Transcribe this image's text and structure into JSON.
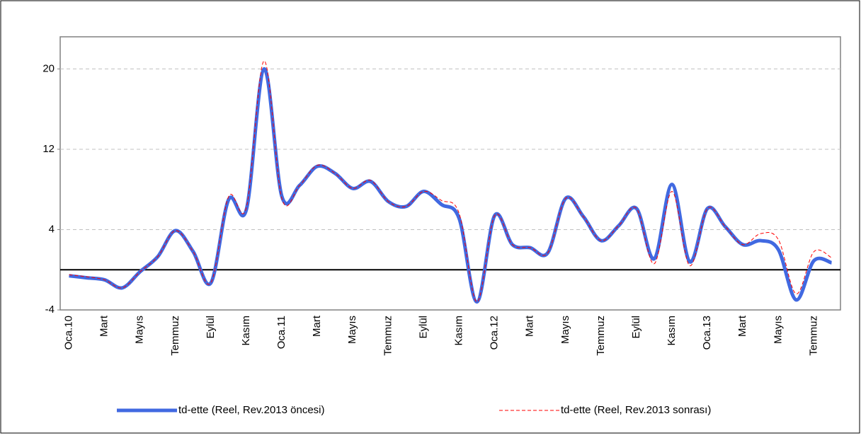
{
  "chart_data": {
    "type": "line",
    "categories": [
      "Oca.10",
      null,
      "Mart",
      null,
      "Mayıs",
      null,
      "Temmuz",
      null,
      "Eylül",
      null,
      "Kasım",
      null,
      "Oca.11",
      null,
      "Mart",
      null,
      "Mayıs",
      null,
      "Temmuz",
      null,
      "Eylül",
      null,
      "Kasım",
      null,
      "Oca.12",
      null,
      "Mart",
      null,
      "Mayıs",
      null,
      "Temmuz",
      null,
      "Eylül",
      null,
      "Kasım",
      null,
      "Oca.13",
      null,
      "Mart",
      null,
      "Mayıs",
      null,
      "Temmuz",
      null
    ],
    "series": [
      {
        "name": "td-ette (Reel, Rev.2013 öncesi)",
        "color": "#4169e1",
        "style": "solid",
        "values": [
          -0.6,
          -0.8,
          -1.0,
          -1.8,
          -0.2,
          1.3,
          3.9,
          1.8,
          -1.3,
          7.0,
          6.0,
          20.0,
          7.3,
          8.4,
          10.3,
          9.6,
          8.1,
          8.8,
          6.8,
          6.3,
          7.8,
          6.5,
          5.1,
          -3.2,
          5.4,
          2.5,
          2.2,
          1.7,
          7.1,
          5.3,
          2.9,
          4.4,
          6.1,
          1.1,
          8.5,
          0.8,
          6.1,
          4.3,
          2.5,
          2.9,
          2.0,
          -3.0,
          0.9,
          0.7
        ]
      },
      {
        "name": "td-ette (Reel, Rev.2013 sonrası)",
        "color": "#ff0000",
        "style": "dashed",
        "values": [
          -0.5,
          -0.7,
          -1.0,
          -1.8,
          -0.2,
          1.3,
          3.9,
          1.8,
          -1.3,
          7.3,
          6.2,
          20.8,
          7.1,
          8.4,
          10.4,
          9.6,
          8.1,
          8.9,
          6.8,
          6.3,
          7.8,
          6.9,
          5.6,
          -3.2,
          5.4,
          2.5,
          2.2,
          1.7,
          7.1,
          5.3,
          2.9,
          4.4,
          6.1,
          0.6,
          7.8,
          0.4,
          6.1,
          4.3,
          2.5,
          3.6,
          3.0,
          -2.4,
          1.8,
          1.2
        ]
      }
    ],
    "ylim": [
      -4,
      23.2
    ],
    "yticks": [
      -4,
      4,
      12,
      20
    ],
    "grid": true,
    "zero_line": true,
    "legend": "bottom"
  }
}
